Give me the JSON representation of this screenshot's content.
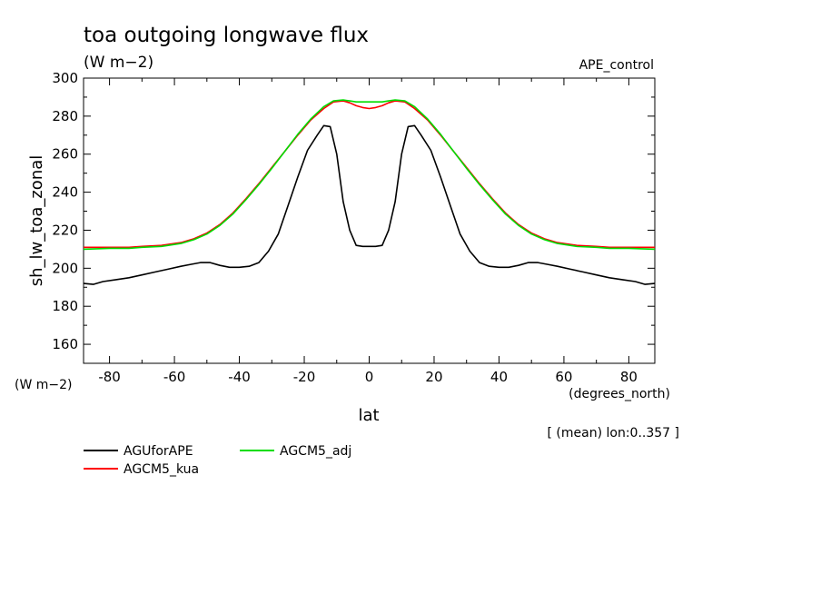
{
  "chart_data": {
    "type": "line",
    "title": "toa outgoing longwave flux",
    "units": "(W m−2)",
    "experiment": "APE_control",
    "xlabel": "lat",
    "xunits": "(degrees_north)",
    "ylabel": "sh_lw_toa_zonal",
    "yunits": "(W m−2)",
    "note": "[ (mean) lon:0..357 ]",
    "xlim": [
      -88,
      88
    ],
    "ylim": [
      150,
      300
    ],
    "xticks": [
      -80,
      -60,
      -40,
      -20,
      0,
      20,
      40,
      60,
      80
    ],
    "yticks": [
      160,
      180,
      200,
      220,
      240,
      260,
      280,
      300
    ],
    "series": [
      {
        "name": "AGUforAPE",
        "color": "#000000",
        "x": [
          -88,
          -85,
          -82,
          -78,
          -74,
          -70,
          -66,
          -62,
          -58,
          -55,
          -52,
          -49,
          -46,
          -43,
          -40,
          -37,
          -34,
          -31,
          -28,
          -25,
          -22,
          -19,
          -16,
          -14,
          -12,
          -10,
          -8,
          -6,
          -4,
          -2,
          0,
          2,
          4,
          6,
          8,
          10,
          12,
          14,
          16,
          19,
          22,
          25,
          28,
          31,
          34,
          37,
          40,
          43,
          46,
          49,
          52,
          55,
          58,
          62,
          66,
          70,
          74,
          78,
          82,
          85,
          88
        ],
        "y": [
          192,
          191.5,
          193,
          194,
          195,
          196.5,
          198,
          199.5,
          201,
          202,
          203,
          203,
          201.5,
          200.5,
          200.5,
          201,
          203,
          209,
          218,
          233,
          248,
          262,
          270,
          275,
          274.5,
          260,
          235,
          220,
          212,
          211.5,
          211.5,
          211.5,
          212,
          220,
          235,
          260,
          274.5,
          275,
          270,
          262,
          248,
          233,
          218,
          209,
          203,
          201,
          200.5,
          200.5,
          201.5,
          203,
          203,
          202,
          201,
          199.5,
          198,
          196.5,
          195,
          194,
          193,
          191.5,
          192
        ]
      },
      {
        "name": "AGCM5_kua",
        "color": "#ff0000",
        "x": [
          -88,
          -80,
          -74,
          -70,
          -64,
          -58,
          -54,
          -50,
          -46,
          -42,
          -38,
          -34,
          -30,
          -26,
          -22,
          -18,
          -14,
          -11,
          -8,
          -6,
          -4,
          -2,
          0,
          2,
          4,
          6,
          8,
          11,
          14,
          18,
          22,
          26,
          30,
          34,
          38,
          42,
          46,
          50,
          54,
          58,
          64,
          70,
          74,
          80,
          88
        ],
        "y": [
          211,
          211,
          211,
          211.5,
          212,
          213.5,
          215.5,
          218.5,
          223,
          229,
          236.5,
          244.5,
          253,
          261.5,
          270,
          278,
          284,
          287.5,
          288,
          287,
          285.5,
          284.5,
          284,
          284.5,
          285.5,
          287,
          288,
          287.5,
          284,
          278,
          270,
          261.5,
          253,
          244.5,
          236.5,
          229,
          223,
          218.5,
          215.5,
          213.5,
          212,
          211.5,
          211,
          211,
          211
        ]
      },
      {
        "name": "AGCM5_adj",
        "color": "#00dd00",
        "x": [
          -88,
          -80,
          -74,
          -70,
          -64,
          -58,
          -54,
          -50,
          -46,
          -42,
          -38,
          -34,
          -30,
          -26,
          -22,
          -18,
          -14,
          -11,
          -8,
          -6,
          -4,
          -2,
          0,
          2,
          4,
          6,
          8,
          11,
          14,
          18,
          22,
          26,
          30,
          34,
          38,
          42,
          46,
          50,
          54,
          58,
          64,
          70,
          74,
          80,
          88
        ],
        "y": [
          210,
          210.5,
          210.5,
          211,
          211.5,
          213,
          215,
          218,
          222.5,
          228.5,
          236,
          244,
          252.5,
          261.5,
          270.5,
          278.5,
          285,
          288,
          288.5,
          288,
          287.5,
          287.5,
          287.5,
          287.5,
          287.5,
          288,
          288.5,
          288,
          285,
          278.5,
          270.5,
          261.5,
          252.5,
          244,
          236,
          228.5,
          222.5,
          218,
          215,
          213,
          211.5,
          211,
          210.5,
          210.5,
          210
        ]
      }
    ]
  }
}
